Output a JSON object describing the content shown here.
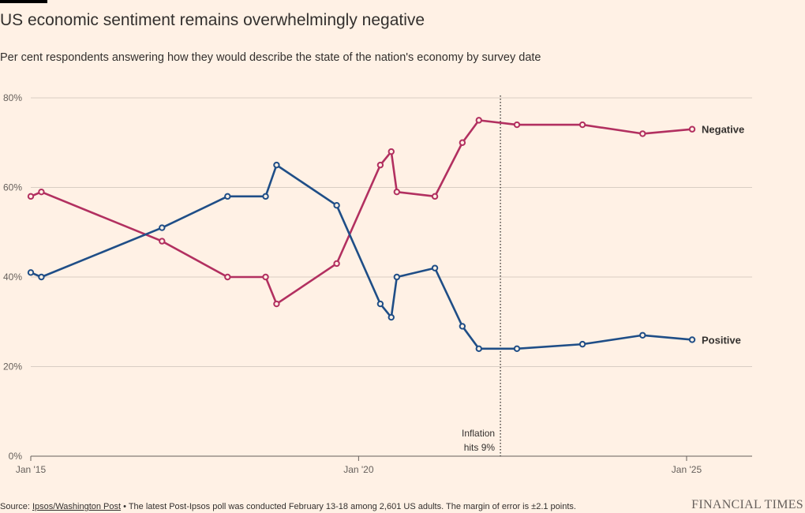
{
  "title": "US economic sentiment remains overwhelmingly negative",
  "subtitle": "Per cent respondents answering how they would describe the state of the nation's economy by survey date",
  "footer": {
    "source_prefix": "Source: ",
    "source_name": "Ipsos/Washington Post",
    "source_note": " • The latest Post-Ipsos poll was conducted February 13-18 among 2,601 US adults. The margin of error is ±2.1 points."
  },
  "brand": "FINANCIAL TIMES",
  "chart_data": {
    "type": "line",
    "title": "US economic sentiment remains overwhelmingly negative",
    "subtitle": "Per cent respondents answering how they would describe the state of the nation's economy by survey date",
    "x_ticks": [
      {
        "label": "Jan '15",
        "value": "2015-01-01"
      },
      {
        "label": "Jan '20",
        "value": "2020-01-01"
      },
      {
        "label": "Jan '25",
        "value": "2025-01-01"
      }
    ],
    "xlim": [
      "2015-01-01",
      "2026-01-01"
    ],
    "ylim": [
      0,
      80
    ],
    "y_ticks": [
      {
        "label": "0%",
        "value": 0
      },
      {
        "label": "20%",
        "value": 20
      },
      {
        "label": "40%",
        "value": 40
      },
      {
        "label": "60%",
        "value": 60
      },
      {
        "label": "80%",
        "value": 80
      }
    ],
    "grid": true,
    "series": [
      {
        "name": "Negative",
        "color": "#b23060",
        "points": [
          [
            "2015-01-01",
            58
          ],
          [
            "2015-03-01",
            59
          ],
          [
            "2017-01-01",
            48
          ],
          [
            "2018-01-01",
            40
          ],
          [
            "2018-08-01",
            40
          ],
          [
            "2018-10-01",
            34
          ],
          [
            "2019-09-01",
            43
          ],
          [
            "2020-05-01",
            65
          ],
          [
            "2020-07-01",
            68
          ],
          [
            "2020-08-01",
            59
          ],
          [
            "2021-03-01",
            58
          ],
          [
            "2021-08-01",
            70
          ],
          [
            "2021-11-01",
            75
          ],
          [
            "2022-06-01",
            74
          ],
          [
            "2023-06-01",
            74
          ],
          [
            "2024-05-01",
            72
          ],
          [
            "2025-02-01",
            73
          ]
        ]
      },
      {
        "name": "Positive",
        "color": "#1f4e87",
        "points": [
          [
            "2015-01-01",
            41
          ],
          [
            "2015-03-01",
            40
          ],
          [
            "2017-01-01",
            51
          ],
          [
            "2018-01-01",
            58
          ],
          [
            "2018-08-01",
            58
          ],
          [
            "2018-10-01",
            65
          ],
          [
            "2019-09-01",
            56
          ],
          [
            "2020-05-01",
            34
          ],
          [
            "2020-07-01",
            31
          ],
          [
            "2020-08-01",
            40
          ],
          [
            "2021-03-01",
            42
          ],
          [
            "2021-08-01",
            29
          ],
          [
            "2021-11-01",
            24
          ],
          [
            "2022-06-01",
            24
          ],
          [
            "2023-06-01",
            25
          ],
          [
            "2024-05-01",
            27
          ],
          [
            "2025-02-01",
            26
          ]
        ]
      }
    ],
    "annotation": {
      "lines": [
        "Inflation",
        "hits 9%"
      ],
      "x": "2022-03-01",
      "style": "dotted vertical line"
    }
  }
}
